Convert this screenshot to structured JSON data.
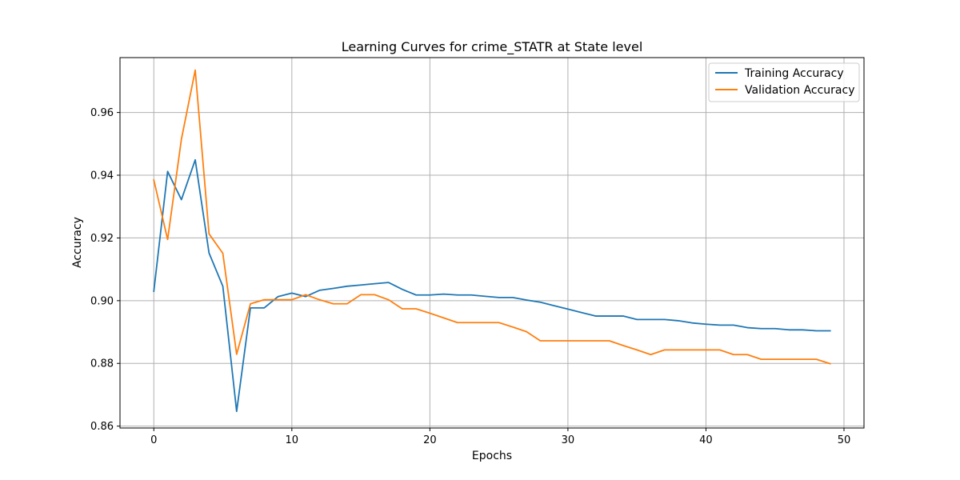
{
  "chart_data": {
    "type": "line",
    "title": "Learning Curves for crime_STATR at State level",
    "xlabel": "Epochs",
    "ylabel": "Accuracy",
    "xlim": [
      -2.45,
      51.45
    ],
    "ylim": [
      0.8594,
      0.9775
    ],
    "x_ticks": [
      0,
      10,
      20,
      30,
      40,
      50
    ],
    "y_ticks": [
      0.86,
      0.88,
      0.9,
      0.92,
      0.94,
      0.96
    ],
    "y_tick_labels": [
      "0.86",
      "0.88",
      "0.90",
      "0.92",
      "0.94",
      "0.96"
    ],
    "grid": true,
    "legend_position": "top-right",
    "x": [
      0,
      1,
      2,
      3,
      4,
      5,
      6,
      7,
      8,
      9,
      10,
      11,
      12,
      13,
      14,
      15,
      16,
      17,
      18,
      19,
      20,
      21,
      22,
      23,
      24,
      25,
      26,
      27,
      28,
      29,
      30,
      31,
      32,
      33,
      34,
      35,
      36,
      37,
      38,
      39,
      40,
      41,
      42,
      43,
      44,
      45,
      46,
      47,
      48,
      49
    ],
    "series": [
      {
        "name": "Training Accuracy",
        "color": "#1f77b4",
        "values": [
          0.903,
          0.9412,
          0.9322,
          0.9449,
          0.9152,
          0.9046,
          0.8647,
          0.8977,
          0.8977,
          0.9013,
          0.9024,
          0.9013,
          0.9033,
          0.9039,
          0.9046,
          0.905,
          0.9054,
          0.9058,
          0.9036,
          0.9018,
          0.9018,
          0.9021,
          0.9018,
          0.9018,
          0.9014,
          0.901,
          0.901,
          0.9002,
          0.8995,
          0.8984,
          0.8973,
          0.8962,
          0.8951,
          0.8951,
          0.8951,
          0.894,
          0.894,
          0.894,
          0.8936,
          0.8929,
          0.8925,
          0.8922,
          0.8922,
          0.8914,
          0.8911,
          0.8911,
          0.8907,
          0.8907,
          0.8904,
          0.8904
        ]
      },
      {
        "name": "Validation Accuracy",
        "color": "#ff7f0e",
        "values": [
          0.9385,
          0.9195,
          0.9515,
          0.9735,
          0.9213,
          0.9151,
          0.8829,
          0.899,
          0.9003,
          0.9003,
          0.9003,
          0.9019,
          0.9003,
          0.899,
          0.899,
          0.9019,
          0.9019,
          0.9003,
          0.8974,
          0.8974,
          0.896,
          0.8945,
          0.893,
          0.893,
          0.893,
          0.893,
          0.8916,
          0.8901,
          0.8872,
          0.8872,
          0.8872,
          0.8872,
          0.8872,
          0.8872,
          0.8857,
          0.8843,
          0.8828,
          0.8843,
          0.8843,
          0.8843,
          0.8843,
          0.8843,
          0.8828,
          0.8828,
          0.8813,
          0.8813,
          0.8813,
          0.8813,
          0.8813,
          0.8799
        ]
      }
    ]
  }
}
